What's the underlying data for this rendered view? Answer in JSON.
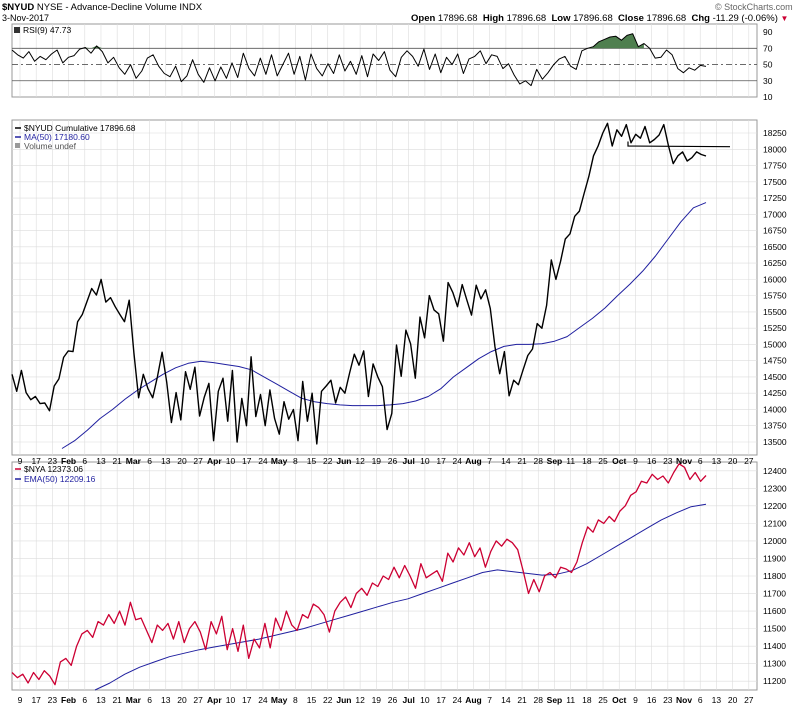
{
  "header": {
    "symbol": "$NYUD",
    "exchange_title": "NYSE - Advance-Decline Volume INDX",
    "date": "3-Nov-2017",
    "watermark": "© StockCharts.com",
    "quote": {
      "open_label": "Open",
      "open": "17896.68",
      "high_label": "High",
      "high": "17896.68",
      "low_label": "Low",
      "low": "17896.68",
      "close_label": "Close",
      "close": "17896.68",
      "chg_label": "Chg",
      "chg": "-11.29 (-0.06%)",
      "chg_arrow": "▼"
    }
  },
  "colors": {
    "price_line": "#000000",
    "ma_line": "#1f1f9f",
    "nya_line": "#cc0033",
    "rsi_fill": "#4f7f4f",
    "grid": "#dcdcdc"
  },
  "chart_data": [
    {
      "type": "line",
      "panel": "rsi",
      "label": "RSI(9) 47.73",
      "ylim": [
        10,
        100
      ],
      "yticks": [
        10,
        30,
        50,
        70,
        90
      ],
      "reference_lines": [
        30,
        50,
        70
      ],
      "series": [
        {
          "name": "RSI(9)",
          "values": [
            68,
            62,
            58,
            66,
            54,
            60,
            56,
            63,
            68,
            52,
            59,
            61,
            69,
            71,
            64,
            73,
            66,
            52,
            59,
            46,
            38,
            50,
            33,
            42,
            58,
            62,
            48,
            39,
            35,
            48,
            29,
            36,
            56,
            38,
            28,
            46,
            30,
            47,
            33,
            52,
            34,
            64,
            45,
            36,
            58,
            38,
            62,
            36,
            50,
            64,
            38,
            60,
            31,
            63,
            45,
            36,
            51,
            39,
            62,
            42,
            54,
            38,
            61,
            35,
            63,
            55,
            66,
            43,
            35,
            59,
            67,
            60,
            48,
            69,
            44,
            63,
            40,
            59,
            50,
            63,
            39,
            57,
            60,
            67,
            51,
            62,
            60,
            45,
            51,
            37,
            26,
            30,
            24,
            44,
            32,
            40,
            50,
            57,
            60,
            48,
            44,
            67,
            70,
            72,
            78,
            81,
            84,
            85,
            80,
            86,
            88,
            72,
            76,
            70,
            58,
            59,
            68,
            62,
            45,
            40,
            46,
            43,
            49,
            47.73
          ]
        }
      ]
    },
    {
      "type": "line",
      "panel": "nyud",
      "label": "$NYUD Cumulative 17896.68",
      "ylim": [
        13300,
        18450
      ],
      "yticks": [
        13500,
        13750,
        14000,
        14250,
        14500,
        14750,
        15000,
        15250,
        15500,
        15750,
        16000,
        16250,
        16500,
        16750,
        17000,
        17250,
        17500,
        17750,
        18000,
        18250
      ],
      "series": [
        {
          "name": "$NYUD Cumulative",
          "values": [
            14540,
            14280,
            14600,
            14260,
            14150,
            14200,
            14090,
            14100,
            13980,
            14360,
            14470,
            14800,
            14900,
            14890,
            15350,
            15460,
            15660,
            15860,
            15760,
            16000,
            15650,
            15720,
            15580,
            15460,
            15350,
            15680,
            14870,
            14180,
            14540,
            14320,
            14180,
            14500,
            14880,
            14420,
            13800,
            14260,
            13840,
            14580,
            14310,
            14650,
            13900,
            14190,
            14400,
            13520,
            14280,
            14480,
            13820,
            14600,
            13500,
            14170,
            13750,
            14810,
            13890,
            14230,
            13750,
            14300,
            13860,
            13620,
            14120,
            13850,
            14000,
            13520,
            14430,
            13820,
            14250,
            13470,
            14280,
            14360,
            14450,
            14100,
            14340,
            14250,
            14560,
            14850,
            14680,
            14900,
            14200,
            14700,
            14500,
            14350,
            13690,
            13940,
            14990,
            14510,
            15220,
            15010,
            14480,
            15420,
            15100,
            15750,
            15530,
            15470,
            15050,
            15950,
            15800,
            15580,
            15920,
            15680,
            15450,
            15910,
            15700,
            15840,
            15550,
            14960,
            14550,
            14890,
            14210,
            14450,
            14380,
            14610,
            14830,
            14930,
            15320,
            15250,
            15600,
            16300,
            16000,
            16280,
            16620,
            16700,
            16970,
            17050,
            17320,
            17580,
            17900,
            18050,
            18250,
            18400,
            18050,
            18300,
            18200,
            18380,
            18100,
            18230,
            18170,
            18350,
            18100,
            18150,
            18220,
            18380,
            18050,
            17780,
            17900,
            17960,
            17820,
            17870,
            17960,
            17920,
            17896.68
          ]
        },
        {
          "name": "MA(50)",
          "label": "MA(50) 17180.60",
          "values": [
            13400,
            13520,
            13680,
            13860,
            14000,
            14160,
            14300,
            14420,
            14540,
            14640,
            14710,
            14740,
            14720,
            14690,
            14660,
            14610,
            14500,
            14390,
            14280,
            14170,
            14120,
            14090,
            14070,
            14060,
            14060,
            14060,
            14070,
            14090,
            14130,
            14200,
            14320,
            14500,
            14640,
            14780,
            14890,
            14970,
            15000,
            15000,
            15010,
            15050,
            15120,
            15260,
            15400,
            15560,
            15750,
            15930,
            16130,
            16360,
            16620,
            16880,
            17100,
            17180.6
          ]
        },
        {
          "name": "Volume undef",
          "values": []
        }
      ],
      "resistance_level": 18050
    },
    {
      "type": "line",
      "panel": "nya",
      "label": "$NYA 12373.06",
      "ylim": [
        11150,
        12450
      ],
      "yticks": [
        11200,
        11300,
        11400,
        11500,
        11600,
        11700,
        11800,
        11900,
        12000,
        12100,
        12200,
        12300,
        12400
      ],
      "series": [
        {
          "name": "$NYA",
          "values": [
            11250,
            11220,
            11240,
            11190,
            11250,
            11210,
            11260,
            11230,
            11180,
            11310,
            11330,
            11290,
            11400,
            11470,
            11490,
            11450,
            11540,
            11520,
            11580,
            11530,
            11600,
            11520,
            11650,
            11550,
            11560,
            11490,
            11420,
            11520,
            11490,
            11530,
            11440,
            11540,
            11420,
            11500,
            11540,
            11480,
            11380,
            11540,
            11470,
            11570,
            11380,
            11500,
            11370,
            11520,
            11330,
            11440,
            11390,
            11530,
            11390,
            11560,
            11490,
            11600,
            11520,
            11490,
            11580,
            11560,
            11640,
            11620,
            11580,
            11480,
            11600,
            11650,
            11680,
            11620,
            11700,
            11730,
            11690,
            11760,
            11740,
            11800,
            11780,
            11850,
            11790,
            11860,
            11800,
            11730,
            11870,
            11790,
            11810,
            11830,
            11770,
            11930,
            11880,
            11960,
            11920,
            11990,
            11910,
            11960,
            11850,
            11940,
            12000,
            11970,
            12010,
            11990,
            11950,
            11830,
            11700,
            11780,
            11710,
            11800,
            11820,
            11790,
            11850,
            11840,
            11820,
            11880,
            11990,
            12080,
            12050,
            12120,
            12100,
            12140,
            12110,
            12170,
            12200,
            12260,
            12280,
            12340,
            12330,
            12380,
            12350,
            12370,
            12330,
            12390,
            12440,
            12420,
            12350,
            12390,
            12340,
            12373.06
          ]
        },
        {
          "name": "EMA(50)",
          "label": "EMA(50) 12209.16",
          "values": [
            11150,
            11190,
            11240,
            11280,
            11310,
            11340,
            11360,
            11380,
            11395,
            11410,
            11425,
            11440,
            11460,
            11480,
            11500,
            11525,
            11550,
            11575,
            11600,
            11625,
            11650,
            11670,
            11700,
            11730,
            11760,
            11790,
            11820,
            11835,
            11825,
            11815,
            11805,
            11810,
            11830,
            11870,
            11920,
            11970,
            12020,
            12070,
            12120,
            12160,
            12195,
            12209.16
          ]
        }
      ]
    }
  ],
  "panels": {
    "rsi": {
      "label": "RSI(9) 47.73"
    },
    "nyud": {
      "label_main": "$NYUD Cumulative 17896.68",
      "label_ma": "MA(50) 17180.60",
      "label_vol": "Volume undef"
    },
    "nya": {
      "label_main": "$NYA 12373.06",
      "label_ema": "EMA(50) 12209.16"
    }
  },
  "x_axis": {
    "ticks": [
      {
        "text": "9"
      },
      {
        "text": "17"
      },
      {
        "text": "23"
      },
      {
        "text": "Feb",
        "bold": true
      },
      {
        "text": "6"
      },
      {
        "text": "13"
      },
      {
        "text": "21"
      },
      {
        "text": "Mar",
        "bold": true
      },
      {
        "text": "6"
      },
      {
        "text": "13"
      },
      {
        "text": "20"
      },
      {
        "text": "27"
      },
      {
        "text": "Apr",
        "bold": true
      },
      {
        "text": "10"
      },
      {
        "text": "17"
      },
      {
        "text": "24"
      },
      {
        "text": "May",
        "bold": true
      },
      {
        "text": "8"
      },
      {
        "text": "15"
      },
      {
        "text": "22"
      },
      {
        "text": "Jun",
        "bold": true
      },
      {
        "text": "12"
      },
      {
        "text": "19"
      },
      {
        "text": "26"
      },
      {
        "text": "Jul",
        "bold": true
      },
      {
        "text": "10"
      },
      {
        "text": "17"
      },
      {
        "text": "24"
      },
      {
        "text": "Aug",
        "bold": true
      },
      {
        "text": "7"
      },
      {
        "text": "14"
      },
      {
        "text": "21"
      },
      {
        "text": "28"
      },
      {
        "text": "Sep",
        "bold": true
      },
      {
        "text": "11"
      },
      {
        "text": "18"
      },
      {
        "text": "25"
      },
      {
        "text": "Oct",
        "bold": true
      },
      {
        "text": "9"
      },
      {
        "text": "16"
      },
      {
        "text": "23"
      },
      {
        "text": "Nov",
        "bold": true
      },
      {
        "text": "6"
      },
      {
        "text": "13"
      },
      {
        "text": "20"
      },
      {
        "text": "27"
      }
    ]
  }
}
